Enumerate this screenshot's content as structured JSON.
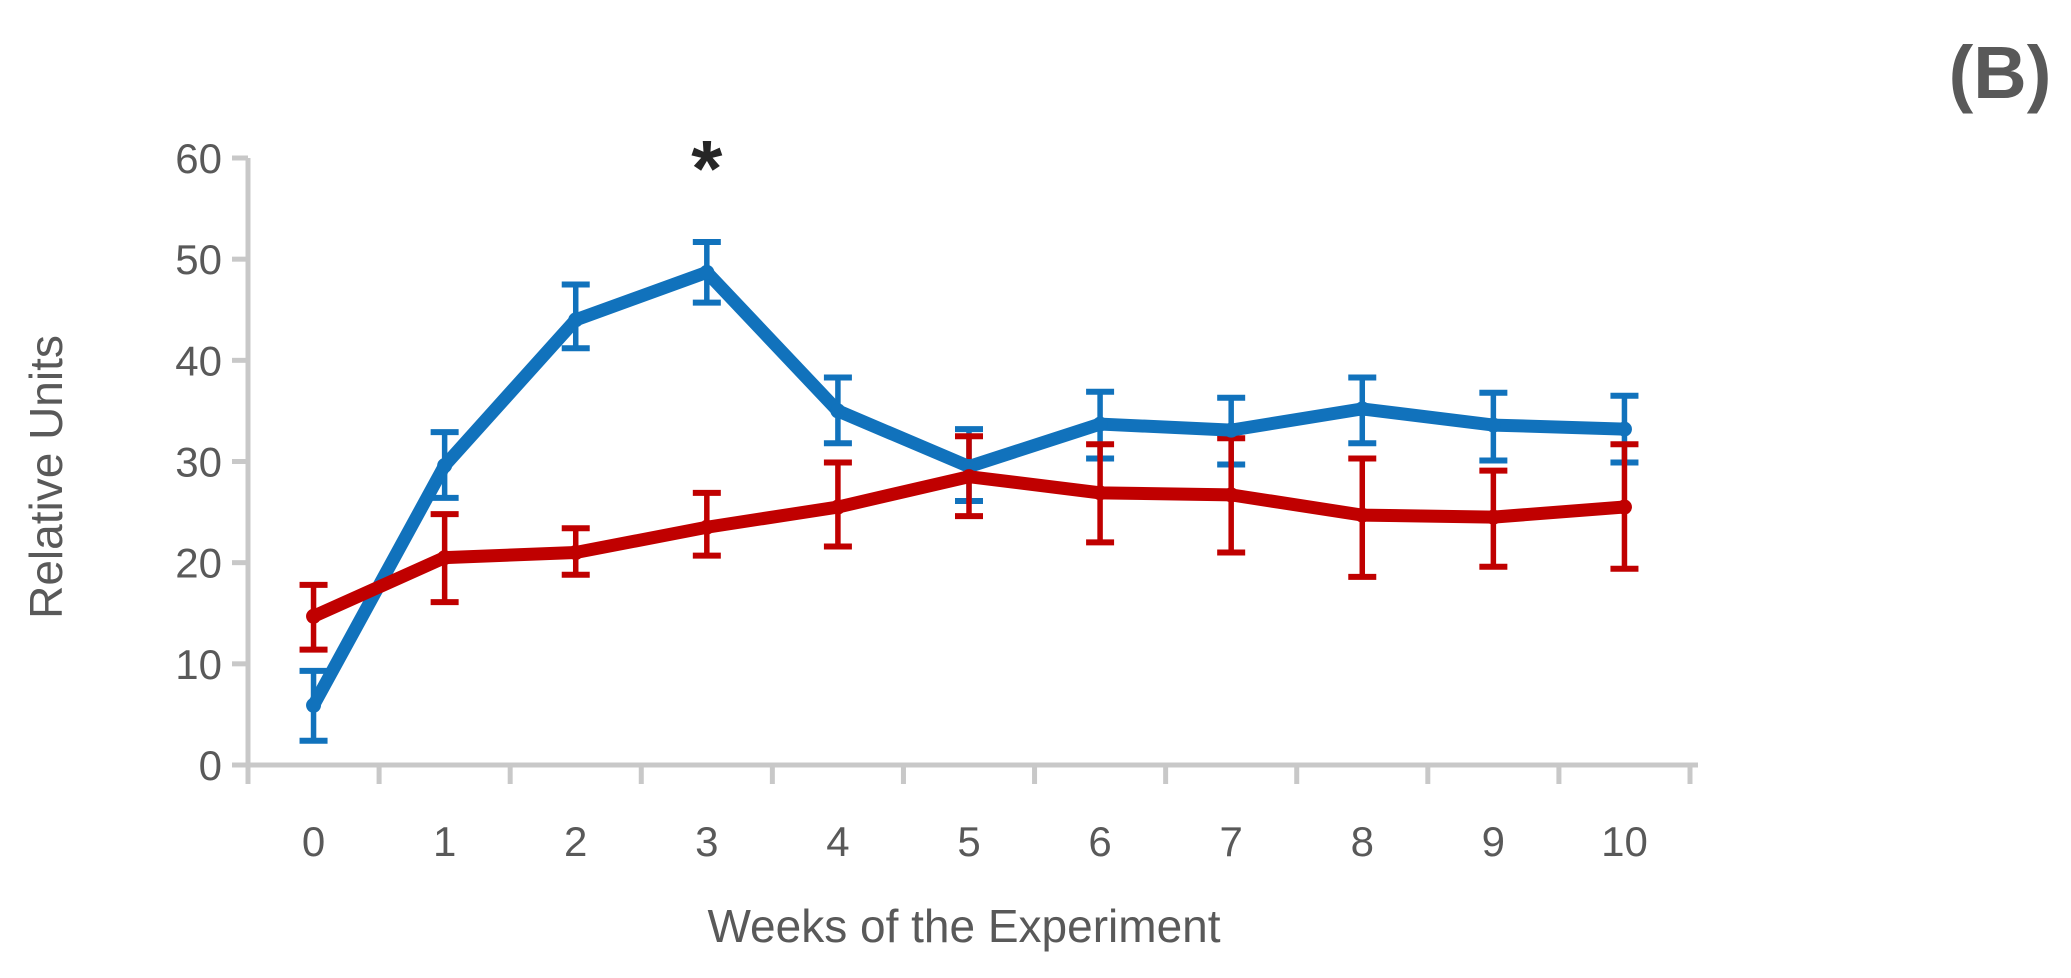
{
  "panel_label": "(B)",
  "chart_data": {
    "type": "line",
    "title": "",
    "xlabel": "Weeks of the Experiment",
    "ylabel": "Relative Units",
    "categories": [
      0,
      1,
      2,
      3,
      4,
      5,
      6,
      7,
      8,
      9,
      10
    ],
    "ylim": [
      0,
      60
    ],
    "yticks": [
      0,
      10,
      20,
      30,
      40,
      50,
      60
    ],
    "grid": false,
    "legend": "none",
    "axis_color": "#C8C8C8",
    "text_color": "#595959",
    "series": [
      {
        "name": "series-blue",
        "color": "#1172BC",
        "values": [
          5.9,
          29.6,
          44.0,
          48.7,
          35.0,
          29.5,
          33.7,
          33.1,
          35.2,
          33.6,
          33.2
        ],
        "error_upper": [
          9.3,
          32.9,
          47.5,
          51.7,
          38.3,
          33.2,
          36.9,
          36.3,
          38.3,
          36.8,
          36.5
        ],
        "error_lower": [
          2.4,
          26.4,
          41.2,
          45.7,
          31.8,
          26.1,
          30.3,
          29.7,
          31.8,
          30.1,
          29.9
        ]
      },
      {
        "name": "series-red",
        "color": "#C00000",
        "values": [
          14.7,
          20.5,
          21.0,
          23.5,
          25.5,
          28.5,
          26.9,
          26.7,
          24.7,
          24.5,
          25.5
        ],
        "error_upper": [
          17.8,
          24.8,
          23.4,
          26.9,
          29.9,
          32.5,
          31.7,
          32.3,
          30.3,
          29.1,
          31.7
        ],
        "error_lower": [
          11.4,
          16.1,
          18.8,
          20.7,
          21.6,
          24.6,
          22.0,
          21.0,
          18.6,
          19.6,
          19.4
        ]
      }
    ],
    "annotations": [
      {
        "text": "*",
        "week": 3,
        "color": "#262626"
      }
    ]
  }
}
